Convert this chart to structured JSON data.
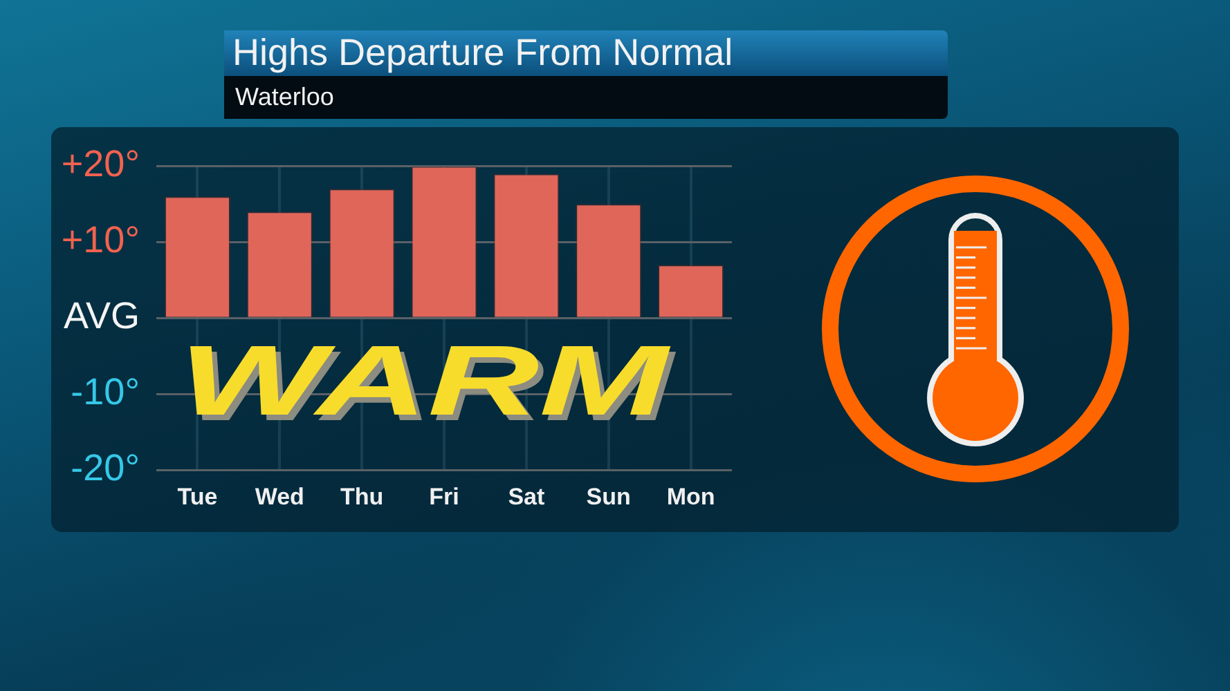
{
  "chart_data": {
    "type": "bar",
    "title": "Highs Departure From Normal",
    "subtitle": "Waterloo",
    "categories": [
      "Tue",
      "Wed",
      "Thu",
      "Fri",
      "Sat",
      "Sun",
      "Mon"
    ],
    "values": [
      16,
      14,
      17,
      20,
      19,
      15,
      7
    ],
    "color": "#e0665a",
    "ylim": [
      -20,
      20
    ],
    "yticks": [
      {
        "value": -20,
        "label": "-20°"
      },
      {
        "value": -10,
        "label": "-10°"
      },
      {
        "value": 0,
        "label": "AVG"
      },
      {
        "value": 10,
        "label": "+10°"
      },
      {
        "value": 20,
        "label": "+20°"
      }
    ],
    "grid": true,
    "annotations": [
      "WARM"
    ]
  }
}
